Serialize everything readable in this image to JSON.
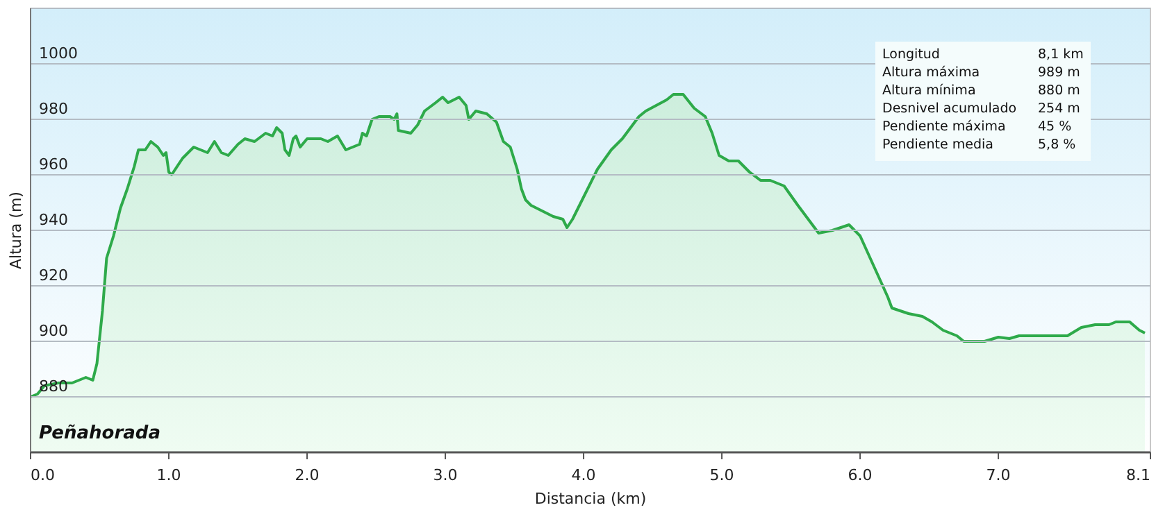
{
  "chart_data": {
    "type": "area",
    "xlabel": "Distancia  (km)",
    "ylabel": "Altura (m)",
    "xlim": [
      0,
      8.1
    ],
    "xticks": [
      {
        "value": 0,
        "label": "0.0"
      },
      {
        "value": 1,
        "label": "1.0"
      },
      {
        "value": 2,
        "label": "2.0"
      },
      {
        "value": 3,
        "label": "3.0"
      },
      {
        "value": 4,
        "label": "4.0"
      },
      {
        "value": 5,
        "label": "5.0"
      },
      {
        "value": 6,
        "label": "6.0"
      },
      {
        "value": 7,
        "label": "7.0"
      },
      {
        "value": 8.1,
        "label": "8.1"
      }
    ],
    "ylim": [
      860,
      1020
    ],
    "yticks": [
      {
        "value": 860,
        "label": null
      },
      880,
      900,
      920,
      940,
      960,
      980,
      1000,
      {
        "value": 1020,
        "label": null
      }
    ],
    "grid": "y",
    "x": [
      0,
      0.05,
      0.1,
      0.2,
      0.3,
      0.4,
      0.45,
      0.48,
      0.52,
      0.55,
      0.6,
      0.65,
      0.7,
      0.75,
      0.78,
      0.83,
      0.87,
      0.92,
      0.96,
      0.98,
      1.0,
      1.02,
      1.1,
      1.18,
      1.28,
      1.33,
      1.38,
      1.43,
      1.5,
      1.55,
      1.62,
      1.7,
      1.75,
      1.78,
      1.82,
      1.84,
      1.87,
      1.9,
      1.92,
      1.95,
      2.0,
      2.1,
      2.15,
      2.22,
      2.28,
      2.33,
      2.38,
      2.4,
      2.43,
      2.47,
      2.52,
      2.6,
      2.63,
      2.65,
      2.66,
      2.75,
      2.8,
      2.85,
      2.93,
      2.98,
      3.02,
      3.1,
      3.15,
      3.17,
      3.22,
      3.3,
      3.37,
      3.42,
      3.47,
      3.52,
      3.55,
      3.58,
      3.62,
      3.7,
      3.78,
      3.85,
      3.88,
      3.92,
      4.0,
      4.1,
      4.2,
      4.28,
      4.4,
      4.45,
      4.6,
      4.65,
      4.72,
      4.8,
      4.88,
      4.93,
      4.98,
      5.05,
      5.12,
      5.2,
      5.28,
      5.35,
      5.45,
      5.55,
      5.7,
      5.8,
      5.92,
      6.0,
      6.1,
      6.2,
      6.23,
      6.35,
      6.45,
      6.52,
      6.6,
      6.7,
      6.75,
      6.9,
      7.0,
      7.08,
      7.15,
      7.5,
      7.6,
      7.7,
      7.8,
      7.85,
      7.95,
      8.02,
      8.06
    ],
    "series": [
      {
        "color": "#2eaa4a",
        "values": [
          880,
          881,
          884,
          885,
          885,
          887,
          886,
          892,
          911,
          930,
          938,
          948,
          955,
          963,
          969,
          969,
          972,
          970,
          967,
          968,
          961,
          960,
          966,
          970,
          968,
          972,
          968,
          967,
          971,
          973,
          972,
          975,
          974,
          977,
          975,
          969,
          967,
          973,
          974,
          970,
          973,
          973,
          972,
          974,
          969,
          970,
          971,
          975,
          974,
          980,
          981,
          981,
          980,
          982,
          976,
          975,
          978,
          983,
          986,
          988,
          986,
          988,
          985,
          980,
          983,
          982,
          979,
          972,
          970,
          962,
          955,
          951,
          949,
          947,
          945,
          944,
          941,
          944,
          952,
          962,
          969,
          973,
          981,
          983,
          987,
          989,
          989,
          984,
          981,
          975,
          967,
          965,
          965,
          961,
          958,
          958,
          956,
          949,
          939,
          940,
          942,
          938,
          927,
          916,
          912,
          910,
          909,
          907,
          904,
          902,
          900,
          900,
          901.5,
          901,
          902,
          902,
          905,
          906,
          906,
          907,
          907,
          904,
          903
        ]
      }
    ],
    "annotations": [
      "Peñahorada",
      "Longitud",
      "8,1 km",
      "Altura máxima",
      "989 m",
      "Altura mínima",
      "880 m",
      "Desnivel acumulado",
      "254 m",
      "Pendiente máxima",
      "45 %",
      "Pendiente media",
      "5,8 %"
    ]
  }
}
